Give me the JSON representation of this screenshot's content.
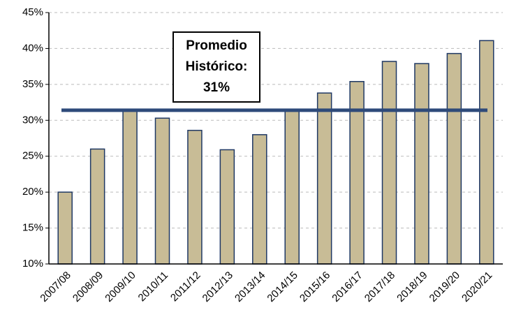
{
  "chart_data": {
    "type": "bar",
    "categories": [
      "2007/08",
      "2008/09",
      "2009/10",
      "2010/11",
      "2011/12",
      "2012/13",
      "2013/14",
      "2014/15",
      "2015/16",
      "2016/17",
      "2017/18",
      "2018/19",
      "2019/20",
      "2020/21"
    ],
    "values": [
      20,
      26,
      31.4,
      30.3,
      28.6,
      25.9,
      28,
      31.4,
      33.8,
      35.4,
      38.2,
      37.9,
      39.3,
      41.1
    ],
    "color": "#c8bc96",
    "edge_color": "#1f3864",
    "ylim": [
      10,
      45
    ],
    "yticks": [
      {
        "value": 10,
        "label": "10%"
      },
      {
        "value": 15,
        "label": "15%"
      },
      {
        "value": 20,
        "label": "20%"
      },
      {
        "value": 25,
        "label": "25%"
      },
      {
        "value": 30,
        "label": "30%"
      },
      {
        "value": 35,
        "label": "35%"
      },
      {
        "value": 40,
        "label": "40%"
      },
      {
        "value": 45,
        "label": "45%"
      }
    ],
    "grid": true,
    "average": {
      "value": 31.4,
      "color": "#2e4a7a",
      "label": [
        "Promedio",
        "Histórico:",
        "31%"
      ]
    }
  }
}
